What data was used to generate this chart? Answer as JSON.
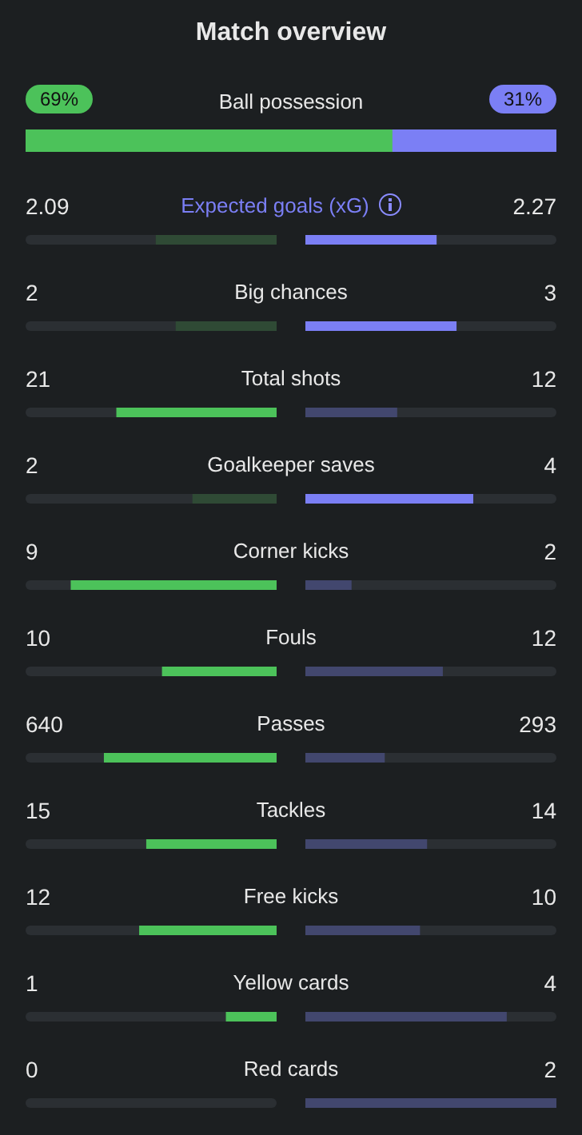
{
  "chart_data": {
    "type": "other",
    "title": "Match overview",
    "categories": [
      "Ball possession",
      "Expected goals (xG)",
      "Big chances",
      "Total shots",
      "Goalkeeper saves",
      "Corner kicks",
      "Fouls",
      "Passes",
      "Tackles",
      "Free kicks",
      "Yellow cards",
      "Red cards"
    ],
    "series": [
      {
        "values": [
          69,
          2.09,
          2,
          21,
          2,
          9,
          10,
          640,
          15,
          12,
          1,
          0
        ],
        "value_labels": [
          "69%",
          "2.09",
          "2",
          "21",
          "2",
          "9",
          "10",
          "640",
          "15",
          "12",
          "1",
          "0"
        ],
        "colors": [
          "#4cc25a",
          "#2f4a35",
          "#2f4a35",
          "#4cc25a",
          "#2f4a35",
          "#4cc25a",
          "#4cc25a",
          "#4cc25a",
          "#4cc25a",
          "#4cc25a",
          "#4cc25a",
          "#2f4a35"
        ]
      },
      {
        "values": [
          31,
          2.27,
          3,
          12,
          4,
          2,
          12,
          293,
          14,
          10,
          4,
          2
        ],
        "value_labels": [
          "31%",
          "2.27",
          "3",
          "12",
          "4",
          "2",
          "12",
          "293",
          "14",
          "10",
          "4",
          "2"
        ],
        "colors": [
          "#7b7ff5",
          "#7b7ff5",
          "#7b7ff5",
          "#42476e",
          "#7b7ff5",
          "#42476e",
          "#42476e",
          "#42476e",
          "#42476e",
          "#42476e",
          "#42476e",
          "#42476e"
        ]
      }
    ]
  }
}
